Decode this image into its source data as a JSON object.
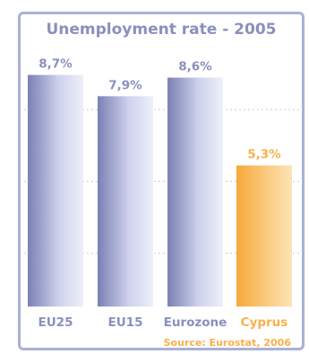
{
  "chart_data": {
    "type": "bar",
    "title": "Unemployment rate - 2005",
    "categories": [
      "EU25",
      "EU15",
      "Eurozone",
      "Cyprus"
    ],
    "values": [
      8.7,
      7.9,
      8.6,
      5.3
    ],
    "value_labels": [
      "8,7%",
      "7,9%",
      "8,6%",
      "5,3%"
    ],
    "highlight_category": "Cyprus",
    "ylim": [
      0,
      10
    ],
    "grid": true,
    "source": "Source: Eurostat, 2006",
    "colors": {
      "frame": "#aab1d6",
      "bar_dark": "#7a80b4",
      "bar_light": "#eef0fa",
      "highlight_dark": "#f6a93b",
      "highlight_light": "#fde3b7",
      "label": "#8a90bd",
      "highlight_label": "#f8b04a",
      "grid": "#c9cce0"
    }
  }
}
